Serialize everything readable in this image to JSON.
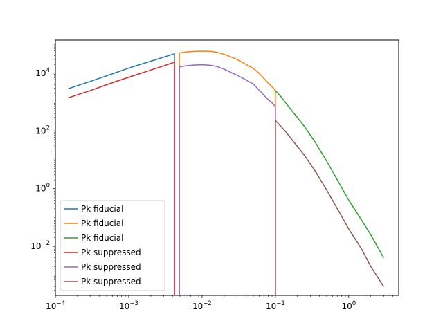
{
  "chart_data": {
    "type": "line",
    "title": "",
    "xlabel": "",
    "ylabel": "",
    "xscale": "log",
    "yscale": "log",
    "xlim": [
      0.0001,
      4.8
    ],
    "ylim": [
      0.0002,
      140000
    ],
    "grid": false,
    "legend_placement": "lower-left",
    "x_ticks": [
      {
        "value": 0.0001,
        "base": "10",
        "exp": "−4"
      },
      {
        "value": 0.001,
        "base": "10",
        "exp": "−3"
      },
      {
        "value": 0.01,
        "base": "10",
        "exp": "−2"
      },
      {
        "value": 0.1,
        "base": "10",
        "exp": "−1"
      },
      {
        "value": 1,
        "base": "10",
        "exp": "0"
      }
    ],
    "y_ticks": [
      {
        "value": 0.01,
        "base": "10",
        "exp": "−2"
      },
      {
        "value": 1,
        "base": "10",
        "exp": "0"
      },
      {
        "value": 100,
        "base": "10",
        "exp": "2"
      },
      {
        "value": 10000,
        "base": "10",
        "exp": "4"
      }
    ],
    "series": [
      {
        "name": "Pk fiducial",
        "color": "#1f77b4",
        "points": [
          [
            0.00015,
            2900
          ],
          [
            0.0003,
            5200
          ],
          [
            0.0006,
            9500
          ],
          [
            0.001,
            15000
          ],
          [
            0.002,
            26000
          ],
          [
            0.003,
            36000
          ],
          [
            0.0042,
            47000
          ],
          [
            0.0042,
            0.0002
          ]
        ]
      },
      {
        "name": "Pk fiducial",
        "color": "#ff7f0e",
        "points": [
          [
            0.0049,
            0.0002
          ],
          [
            0.0049,
            50000
          ],
          [
            0.006,
            54000
          ],
          [
            0.008,
            57000
          ],
          [
            0.01,
            58000
          ],
          [
            0.013,
            57000
          ],
          [
            0.016,
            53000
          ],
          [
            0.02,
            45000
          ],
          [
            0.025,
            36000
          ],
          [
            0.03,
            30000
          ],
          [
            0.04,
            20000
          ],
          [
            0.05,
            14500
          ],
          [
            0.06,
            10000
          ],
          [
            0.07,
            6500
          ],
          [
            0.08,
            4500
          ],
          [
            0.09,
            3400
          ],
          [
            0.1,
            2500
          ],
          [
            0.1,
            0.0002
          ]
        ]
      },
      {
        "name": "Pk fiducial",
        "color": "#2ca02c",
        "points": [
          [
            0.1,
            2500
          ],
          [
            0.12,
            1500
          ],
          [
            0.14,
            900
          ],
          [
            0.18,
            400
          ],
          [
            0.25,
            140
          ],
          [
            0.35,
            40
          ],
          [
            0.5,
            9
          ],
          [
            0.7,
            2
          ],
          [
            1,
            0.4
          ],
          [
            1.5,
            0.08
          ],
          [
            2,
            0.025
          ],
          [
            3,
            0.004
          ]
        ]
      },
      {
        "name": "Pk suppressed",
        "color": "#d62728",
        "points": [
          [
            0.00015,
            1400
          ],
          [
            0.0003,
            2500
          ],
          [
            0.0006,
            4700
          ],
          [
            0.001,
            7200
          ],
          [
            0.002,
            12800
          ],
          [
            0.003,
            18000
          ],
          [
            0.0042,
            24000
          ],
          [
            0.0042,
            0.0002
          ]
        ]
      },
      {
        "name": "Pk suppressed",
        "color": "#9467bd",
        "points": [
          [
            0.0049,
            0.0002
          ],
          [
            0.0049,
            16500
          ],
          [
            0.006,
            18000
          ],
          [
            0.008,
            19200
          ],
          [
            0.01,
            19600
          ],
          [
            0.013,
            18800
          ],
          [
            0.016,
            17000
          ],
          [
            0.02,
            13800
          ],
          [
            0.025,
            10500
          ],
          [
            0.03,
            8500
          ],
          [
            0.04,
            5800
          ],
          [
            0.05,
            4200
          ],
          [
            0.06,
            2600
          ],
          [
            0.07,
            1700
          ],
          [
            0.08,
            1200
          ],
          [
            0.09,
            950
          ],
          [
            0.1,
            700
          ],
          [
            0.1,
            0.0002
          ]
        ]
      },
      {
        "name": "Pk suppressed",
        "color": "#8c564b",
        "points": [
          [
            0.1,
            0.0002
          ],
          [
            0.1,
            230
          ],
          [
            0.12,
            140
          ],
          [
            0.14,
            90
          ],
          [
            0.18,
            40
          ],
          [
            0.25,
            14
          ],
          [
            0.35,
            4
          ],
          [
            0.5,
            0.9
          ],
          [
            0.7,
            0.2
          ],
          [
            1,
            0.04
          ],
          [
            1.5,
            0.008
          ],
          [
            2,
            0.002
          ],
          [
            3,
            0.0004
          ]
        ]
      }
    ]
  }
}
